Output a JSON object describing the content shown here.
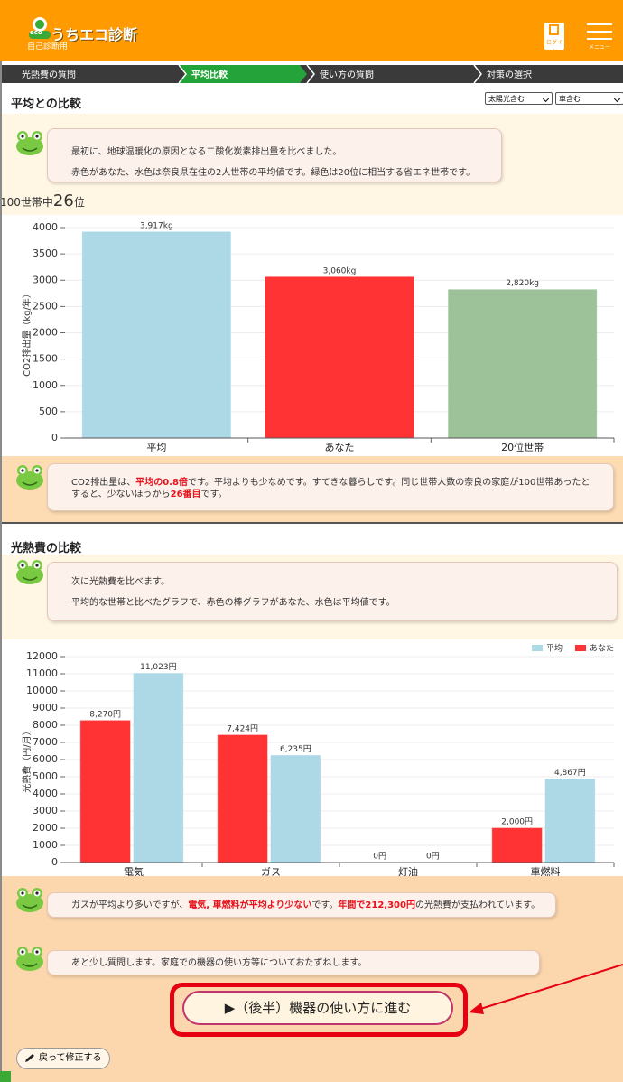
{
  "header": {
    "badge": "eco",
    "logo": "うちエコ診断",
    "subtitle": "自己診断用",
    "login": "ログイン",
    "menu": "メニュー"
  },
  "steps": [
    {
      "label": "光熱費の質問",
      "active": false
    },
    {
      "label": "平均比較",
      "active": true
    },
    {
      "label": "使い方の質問",
      "active": false
    },
    {
      "label": "対策の選択",
      "active": false
    }
  ],
  "section1": {
    "title": "平均との比較",
    "selects": [
      "太陽光含む",
      "車含む"
    ],
    "message": [
      "最初に、地球温暖化の原因となる二酸化炭素排出量を比べました。",
      "赤色があなた、水色は奈良県在住の2人世帯の平均値です。緑色は20位に相当する省エネ世帯です。"
    ],
    "rank": {
      "prefix": "100世帯中",
      "value": 26,
      "suffix": "位"
    },
    "comment": [
      {
        "text": "CO2排出量は、",
        "em": false
      },
      {
        "text": "平均の0.8倍",
        "em": true
      },
      {
        "text": "です。平均よりも少なめです。すてきな暮らしです。同じ世帯人数の奈良の家庭が100世帯あったとすると、少ないほうから",
        "em": false
      },
      {
        "text": "26番目",
        "em": true
      },
      {
        "text": "です。",
        "em": false
      }
    ]
  },
  "section2": {
    "title": "光熱費の比較",
    "message": [
      "次に光熱費を比べます。",
      "平均的な世帯と比べたグラフで、赤色の棒グラフがあなた、水色は平均値です。"
    ],
    "comment": [
      {
        "text": "ガスが平均より多いですが、",
        "em": false
      },
      {
        "text": "電気, 車燃料が平均より少ない",
        "em": true
      },
      {
        "text": "です。",
        "em": false
      },
      {
        "text": "年間で212,300円",
        "em": true
      },
      {
        "text": "の光熱費が支払われています。",
        "em": false
      }
    ],
    "next_message": "あと少し質問します。家庭での機器の使い方等についておたずねします。",
    "next_button": "▶（後半）機器の使い方に進む",
    "back_button": "戻って修正する"
  },
  "chart_data": [
    {
      "type": "bar",
      "y_label": "CO2排出量（kg/年）",
      "categories": [
        "平均",
        "あなた",
        "20位世帯"
      ],
      "values": [
        3917,
        3060,
        2820
      ],
      "value_labels": [
        "3,917kg",
        "3,060kg",
        "2,820kg"
      ],
      "colors": [
        "#add8e6",
        "#ff3333",
        "#9dc29a"
      ],
      "ylim": [
        0,
        4000
      ],
      "yticks": [
        0,
        500,
        1000,
        1500,
        2000,
        2500,
        3000,
        3500,
        4000
      ],
      "grid": true
    },
    {
      "type": "grouped_bar",
      "y_label": "光熱費（円/月）",
      "categories": [
        "電気",
        "ガス",
        "灯油",
        "車燃料"
      ],
      "series": [
        {
          "name": "あなた",
          "color": "#ff3333",
          "values": [
            8270,
            7424,
            0,
            2000
          ],
          "value_labels": [
            "8,270円",
            "7,424円",
            "0円",
            "2,000円"
          ]
        },
        {
          "name": "平均",
          "color": "#add8e6",
          "values": [
            11023,
            6235,
            0,
            4867
          ],
          "value_labels": [
            "11,023円",
            "6,235円",
            "0円",
            "4,867円"
          ]
        }
      ],
      "ylim": [
        0,
        12000
      ],
      "yticks": [
        0,
        1000,
        2000,
        3000,
        4000,
        5000,
        6000,
        7000,
        8000,
        9000,
        10000,
        11000,
        12000
      ],
      "grid": true,
      "legend": "top-right"
    }
  ]
}
